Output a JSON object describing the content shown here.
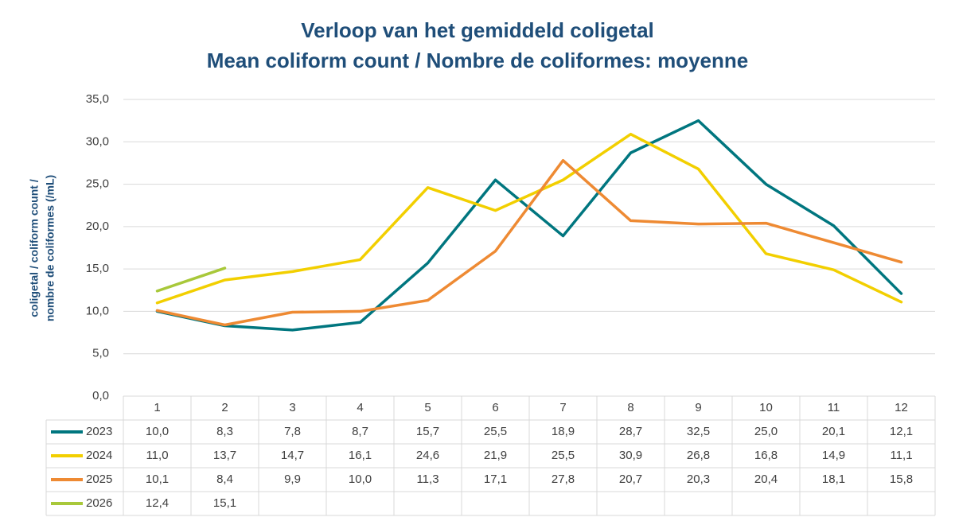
{
  "chart_data": {
    "type": "line",
    "title": "Verloop van het gemiddeld coligetal",
    "subtitle": "Mean coliform count / Nombre de coliformes: moyenne",
    "ylabel": [
      "coligetal / coliform count /",
      "nombre de coliformes (/mL)"
    ],
    "categories": [
      "1",
      "2",
      "3",
      "4",
      "5",
      "6",
      "7",
      "8",
      "9",
      "10",
      "11",
      "12"
    ],
    "series": [
      {
        "name": "2023",
        "color": "#00767f",
        "values": [
          10.0,
          8.3,
          7.8,
          8.7,
          15.7,
          25.5,
          18.9,
          28.7,
          32.5,
          25.0,
          20.1,
          12.1
        ],
        "value_labels": [
          "10,0",
          "8,3",
          "7,8",
          "8,7",
          "15,7",
          "25,5",
          "18,9",
          "28,7",
          "32,5",
          "25,0",
          "20,1",
          "12,1"
        ]
      },
      {
        "name": "2024",
        "color": "#f2cf00",
        "values": [
          11.0,
          13.7,
          14.7,
          16.1,
          24.6,
          21.9,
          25.5,
          30.9,
          26.8,
          16.8,
          14.9,
          11.1
        ],
        "value_labels": [
          "11,0",
          "13,7",
          "14,7",
          "16,1",
          "24,6",
          "21,9",
          "25,5",
          "30,9",
          "26,8",
          "16,8",
          "14,9",
          "11,1"
        ]
      },
      {
        "name": "2025",
        "color": "#ee8a33",
        "values": [
          10.1,
          8.4,
          9.9,
          10.0,
          11.3,
          17.1,
          27.8,
          20.7,
          20.3,
          20.4,
          18.1,
          15.8
        ],
        "value_labels": [
          "10,1",
          "8,4",
          "9,9",
          "10,0",
          "11,3",
          "17,1",
          "27,8",
          "20,7",
          "20,3",
          "20,4",
          "18,1",
          "15,8"
        ]
      },
      {
        "name": "2026",
        "color": "#a8c83a",
        "values": [
          12.4,
          15.1,
          null,
          null,
          null,
          null,
          null,
          null,
          null,
          null,
          null,
          null
        ],
        "value_labels": [
          "12,4",
          "15,1",
          null,
          null,
          null,
          null,
          null,
          null,
          null,
          null,
          null,
          null
        ]
      }
    ],
    "ylim": [
      0,
      35
    ],
    "yticks": [
      {
        "value": 0,
        "label": "0,0"
      },
      {
        "value": 5,
        "label": "5,0"
      },
      {
        "value": 10,
        "label": "10,0"
      },
      {
        "value": 15,
        "label": "15,0"
      },
      {
        "value": 20,
        "label": "20,0"
      },
      {
        "value": 25,
        "label": "25,0"
      },
      {
        "value": 30,
        "label": "30,0"
      },
      {
        "value": 35,
        "label": "35,0"
      }
    ],
    "grid": true
  }
}
